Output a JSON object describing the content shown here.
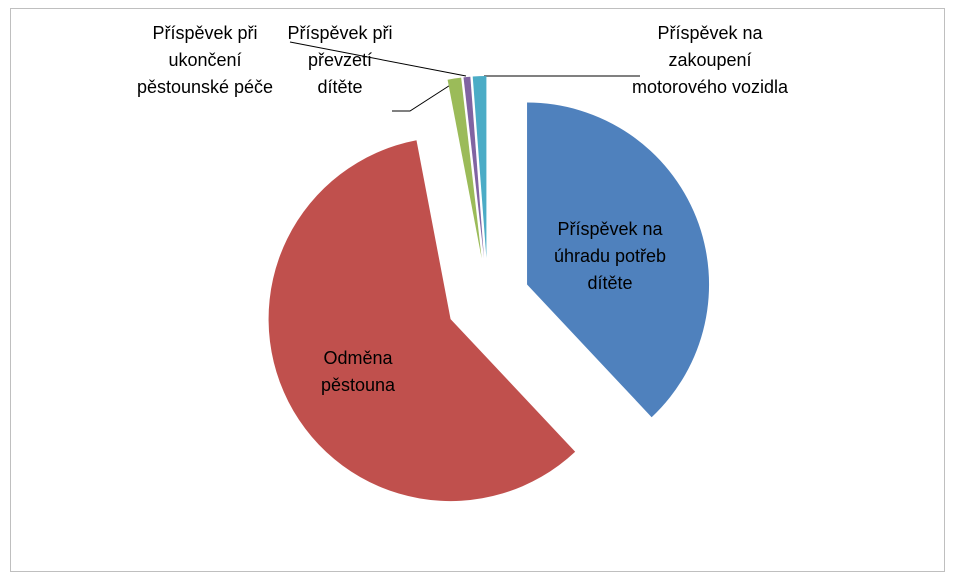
{
  "chart_data": {
    "type": "pie",
    "categories": [
      "Příspěvek na úhradu potřeb dítěte",
      "Odměna pěstouna",
      "Příspěvek při převzetí dítěte",
      "Příspěvek při ukončení pěstounské péče",
      "Příspěvek na zakoupení motorového vozidla"
    ],
    "values": [
      38,
      59,
      1.2,
      0.6,
      1.2
    ],
    "colors": [
      "#4f81bd",
      "#c0504d",
      "#9bbb59",
      "#8064a2",
      "#4bacc6"
    ]
  }
}
